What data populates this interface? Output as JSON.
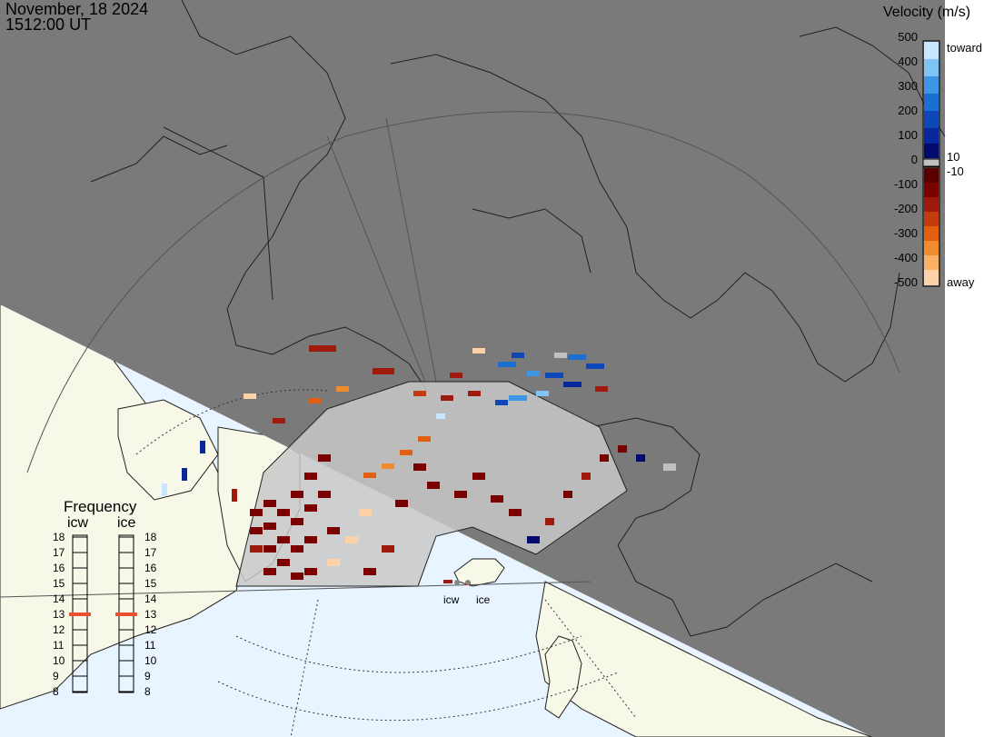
{
  "title": {
    "date": "November, 18 2024",
    "time": "1512:00 UT"
  },
  "colorbar": {
    "title": "Velocity (m/s)",
    "ticks_left": [
      "500",
      "400",
      "300",
      "200",
      "100",
      "0",
      "-100",
      "-200",
      "-300",
      "-400",
      "-500"
    ],
    "label_toward": "toward",
    "label_away": "away",
    "label_plus": "10",
    "label_minus": "-10",
    "colors": {
      "toward": [
        "#c8e6ff",
        "#7fc4f5",
        "#3d95e4",
        "#1a6fd0",
        "#0d47b8",
        "#08279a",
        "#020a6e"
      ],
      "away": [
        "#5a0000",
        "#7b0000",
        "#9e1a0c",
        "#c23c10",
        "#e06010",
        "#f08c2c",
        "#fbb068",
        "#fdd2a8"
      ],
      "ground_scatter": "#c0c0c0"
    }
  },
  "frequency": {
    "title": "Frequency",
    "radars": [
      {
        "name": "icw",
        "value_mhz": 13
      },
      {
        "name": "ice",
        "value_mhz": 13
      }
    ],
    "scale": [
      "18",
      "17",
      "16",
      "15",
      "14",
      "13",
      "12",
      "11",
      "10",
      "9",
      "8"
    ],
    "indicator_color": "#e85030"
  },
  "radar_sites": [
    {
      "name": "icw"
    },
    {
      "name": "ice"
    }
  ],
  "map_colors": {
    "night": "#7a7a7a",
    "land_day": "#f8f8e8",
    "ocean_day": "#e8f4ff",
    "coast": "#202020"
  }
}
